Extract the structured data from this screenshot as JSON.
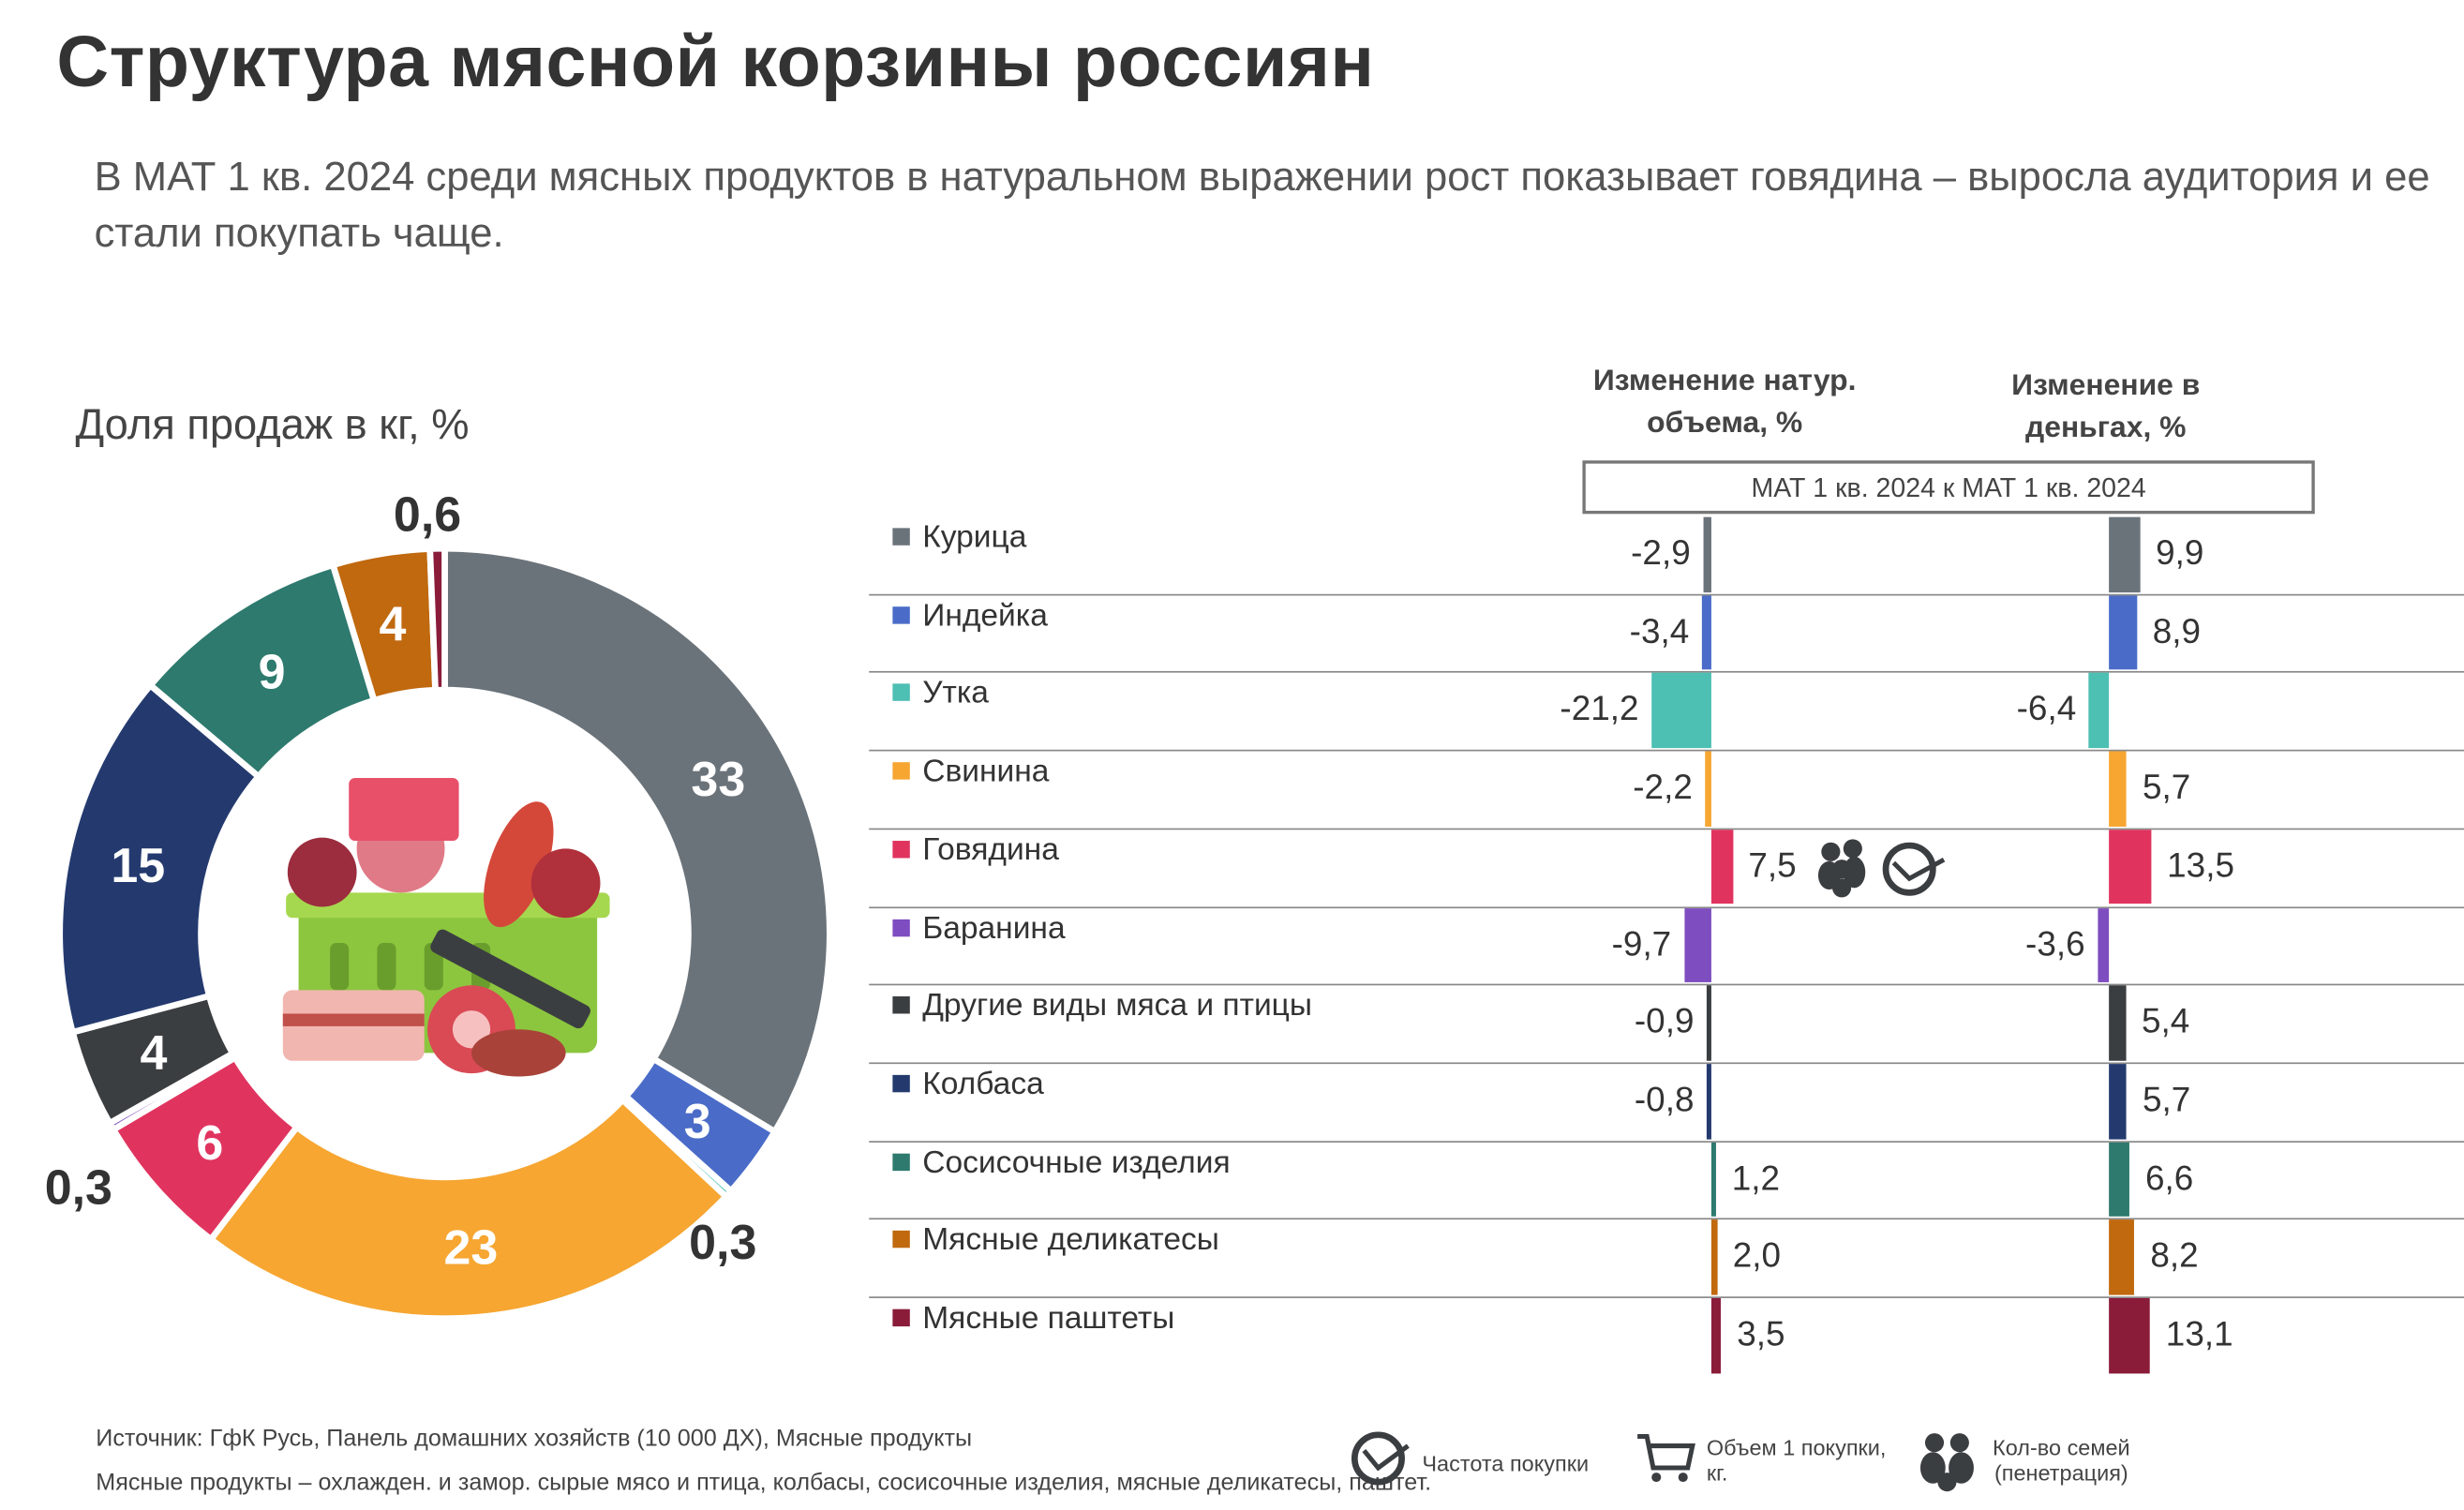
{
  "title": "Структура мясной корзины россиян",
  "subtitle": "В МАТ 1 кв. 2024 среди мясных продуктов в натуральном выражении рост показывает говядина – выросла аудитория и ее стали покупать чаще.",
  "chart_data": [
    {
      "type": "pie",
      "title": "Доля продаж в кг, %",
      "labels": [
        "Курица",
        "Индейка",
        "Утка",
        "Свинина",
        "Говядина",
        "Баранина",
        "Другие виды мяса и птицы",
        "Колбаса",
        "Сосисочные изделия",
        "Мясные деликатесы",
        "Мясные паштеты"
      ],
      "values": [
        33,
        3,
        0.3,
        23,
        6,
        0.3,
        4,
        15,
        9,
        4,
        0.6
      ],
      "value_labels": [
        "33",
        "3",
        "0,3",
        "23",
        "6",
        "0,3",
        "4",
        "15",
        "9",
        "4",
        "0,6"
      ],
      "colors": [
        "#6b737a",
        "#4a6cc8",
        "#4dbfb3",
        "#f6a631",
        "#e0345f",
        "#7e4dc0",
        "#3b3e41",
        "#243a6f",
        "#2e7a6e",
        "#c0690f",
        "#8a1c3a"
      ]
    },
    {
      "type": "bar",
      "orientation": "horizontal",
      "period": "МАТ 1 кв. 2024 к МАТ 1 кв. 2024",
      "categories": [
        "Курица",
        "Индейка",
        "Утка",
        "Свинина",
        "Говядина",
        "Баранина",
        "Другие виды мяса и птицы",
        "Колбаса",
        "Сосисочные изделия",
        "Мясные деликатесы",
        "Мясные паштеты"
      ],
      "series": [
        {
          "name": "Изменение  натур. объема, %",
          "values": [
            -2.9,
            -3.4,
            -21.2,
            -2.2,
            7.5,
            -9.7,
            -0.9,
            -0.8,
            1.2,
            2.0,
            3.5
          ],
          "labels": [
            "-2,9",
            "-3,4",
            "-21,2",
            "-2,2",
            "7,5",
            "-9,7",
            "-0,9",
            "-0,8",
            "1,2",
            "2,0",
            "3,5"
          ]
        },
        {
          "name": "Изменение в деньгах, %",
          "values": [
            9.9,
            8.9,
            -6.4,
            5.7,
            13.5,
            -3.6,
            5.4,
            5.7,
            6.6,
            8.2,
            13.1
          ],
          "labels": [
            "9,9",
            "8,9",
            "-6,4",
            "5,7",
            "13,5",
            "-3,6",
            "5,4",
            "5,7",
            "6,6",
            "8,2",
            "13,1"
          ]
        }
      ]
    }
  ],
  "headers": {
    "volume_l1": "Изменение  натур.",
    "volume_l2": "объема, %",
    "money_l1": "Изменение в",
    "money_l2": "деньгах, %"
  },
  "footer": {
    "source": "Источник: ГфК Русь, Панель домашних хозяйств (10 000 ДХ), Мясные продукты",
    "note": "Мясные продукты – охлажден. и замор. сырые мясо и птица, колбасы, сосисочные изделия, мясные деликатесы, паштет.",
    "legend": [
      {
        "icon": "clock-check-icon",
        "label": "Частота покупки"
      },
      {
        "icon": "cart-icon",
        "label_l1": "Объем 1 покупки,",
        "label_l2": "кг."
      },
      {
        "icon": "family-icon",
        "label_l1": "Кол-во семей",
        "label_l2": "(пенетрация)"
      }
    ]
  }
}
